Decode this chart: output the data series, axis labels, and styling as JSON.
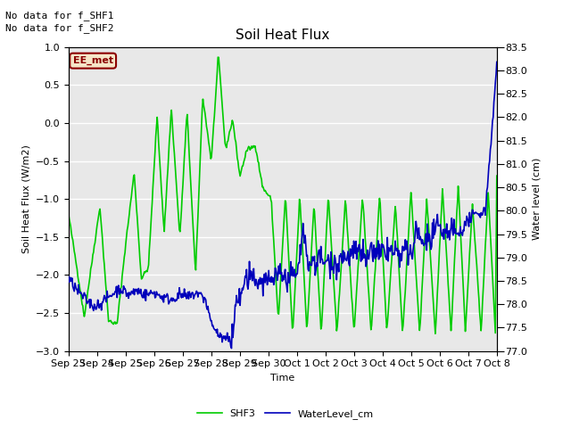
{
  "title": "Soil Heat Flux",
  "ylabel_left": "Soil Heat Flux (W/m2)",
  "ylabel_right": "Water level (cm)",
  "xlabel": "Time",
  "text_no_data1": "No data for f_SHF1",
  "text_no_data2": "No data for f_SHF2",
  "text_box": "EE_met",
  "ylim_left": [
    -3.0,
    1.0
  ],
  "ylim_right": [
    77.0,
    83.5
  ],
  "yticks_left": [
    -3.0,
    -2.5,
    -2.0,
    -1.5,
    -1.0,
    -0.5,
    0.0,
    0.5,
    1.0
  ],
  "yticks_right": [
    77.0,
    77.5,
    78.0,
    78.5,
    79.0,
    79.5,
    80.0,
    80.5,
    81.0,
    81.5,
    82.0,
    82.5,
    83.0,
    83.5
  ],
  "shf3_color": "#00CC00",
  "water_color": "#0000BB",
  "background_color": "#E8E8E8",
  "grid_color": "#FFFFFF",
  "shf3_linewidth": 1.2,
  "water_linewidth": 1.2,
  "xtick_labels": [
    "Sep 23",
    "Sep 24",
    "Sep 25",
    "Sep 26",
    "Sep 27",
    "Sep 28",
    "Sep 29",
    "Sep 30",
    "Oct 1",
    "Oct 2",
    "Oct 3",
    "Oct 4",
    "Oct 5",
    "Oct 6",
    "Oct 7",
    "Oct 8"
  ],
  "figsize": [
    6.4,
    4.8
  ],
  "dpi": 100,
  "title_fontsize": 11,
  "label_fontsize": 8,
  "tick_fontsize": 8,
  "annot_fontsize": 8
}
